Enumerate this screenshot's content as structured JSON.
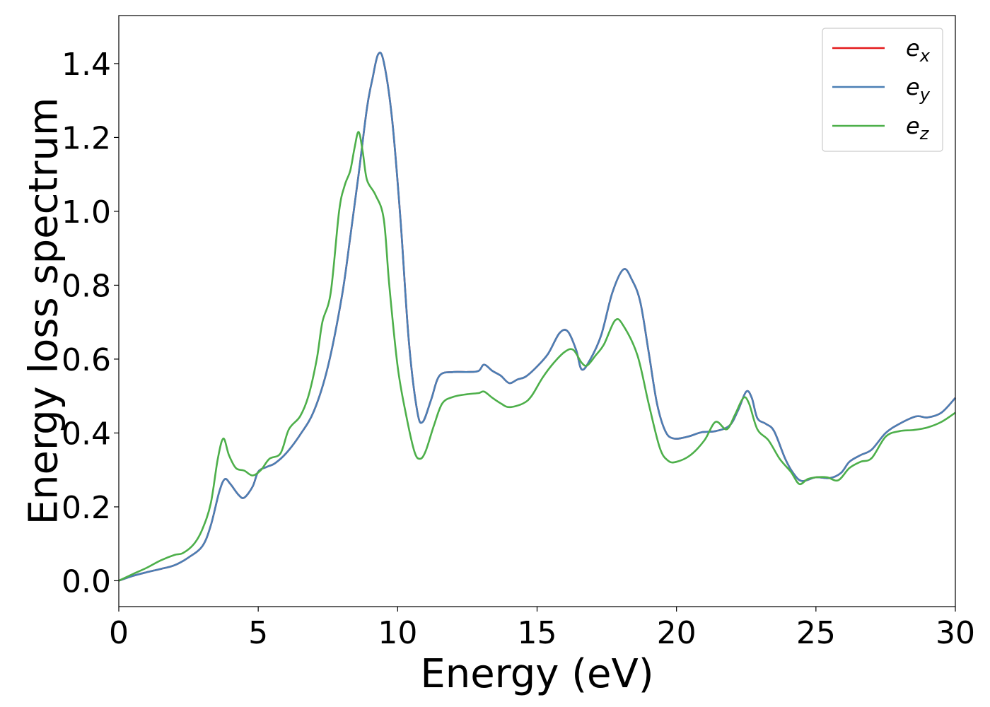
{
  "chart_data": {
    "type": "line",
    "title": "",
    "xlabel": "Energy (eV)",
    "ylabel": "Energy loss spectrum",
    "xlim": [
      0,
      30
    ],
    "ylim": [
      -0.07,
      1.53
    ],
    "xticks": [
      0,
      5,
      10,
      15,
      20,
      25,
      30
    ],
    "xtick_labels": [
      "0",
      "5",
      "10",
      "15",
      "20",
      "25",
      "30"
    ],
    "yticks": [
      0.0,
      0.2,
      0.4,
      0.6,
      0.8,
      1.0,
      1.2,
      1.4
    ],
    "ytick_labels": [
      "0.0",
      "0.2",
      "0.4",
      "0.6",
      "0.8",
      "1.0",
      "1.2",
      "1.4"
    ],
    "grid": false,
    "legend_position": "top-right",
    "series": [
      {
        "name": "e_x",
        "legend_base": "e",
        "legend_sub": "x",
        "color": "#e41a1c",
        "points": [
          [
            0,
            0.0
          ],
          [
            0.5,
            0.013
          ],
          [
            1,
            0.023
          ],
          [
            1.5,
            0.032
          ],
          [
            2,
            0.042
          ],
          [
            2.5,
            0.063
          ],
          [
            3,
            0.094
          ],
          [
            3.3,
            0.15
          ],
          [
            3.6,
            0.24
          ],
          [
            3.8,
            0.275
          ],
          [
            4,
            0.262
          ],
          [
            4.3,
            0.232
          ],
          [
            4.5,
            0.225
          ],
          [
            4.8,
            0.255
          ],
          [
            5,
            0.295
          ],
          [
            5.3,
            0.308
          ],
          [
            5.6,
            0.318
          ],
          [
            6,
            0.345
          ],
          [
            6.5,
            0.395
          ],
          [
            7,
            0.46
          ],
          [
            7.5,
            0.58
          ],
          [
            8,
            0.77
          ],
          [
            8.3,
            0.93
          ],
          [
            8.6,
            1.1
          ],
          [
            8.9,
            1.28
          ],
          [
            9.1,
            1.36
          ],
          [
            9.3,
            1.425
          ],
          [
            9.5,
            1.405
          ],
          [
            9.8,
            1.25
          ],
          [
            10.1,
            0.98
          ],
          [
            10.4,
            0.65
          ],
          [
            10.7,
            0.46
          ],
          [
            10.9,
            0.43
          ],
          [
            11.2,
            0.49
          ],
          [
            11.5,
            0.555
          ],
          [
            12,
            0.565
          ],
          [
            12.5,
            0.565
          ],
          [
            12.9,
            0.568
          ],
          [
            13.1,
            0.585
          ],
          [
            13.4,
            0.568
          ],
          [
            13.7,
            0.555
          ],
          [
            14,
            0.535
          ],
          [
            14.3,
            0.545
          ],
          [
            14.6,
            0.553
          ],
          [
            15,
            0.58
          ],
          [
            15.4,
            0.615
          ],
          [
            15.8,
            0.67
          ],
          [
            16.1,
            0.675
          ],
          [
            16.4,
            0.625
          ],
          [
            16.6,
            0.572
          ],
          [
            16.9,
            0.598
          ],
          [
            17.3,
            0.665
          ],
          [
            17.7,
            0.78
          ],
          [
            18.1,
            0.843
          ],
          [
            18.4,
            0.815
          ],
          [
            18.7,
            0.755
          ],
          [
            19,
            0.62
          ],
          [
            19.3,
            0.48
          ],
          [
            19.6,
            0.405
          ],
          [
            19.9,
            0.385
          ],
          [
            20.4,
            0.39
          ],
          [
            20.9,
            0.402
          ],
          [
            21.4,
            0.405
          ],
          [
            21.9,
            0.42
          ],
          [
            22.2,
            0.46
          ],
          [
            22.5,
            0.512
          ],
          [
            22.7,
            0.495
          ],
          [
            22.9,
            0.44
          ],
          [
            23.2,
            0.425
          ],
          [
            23.5,
            0.405
          ],
          [
            23.9,
            0.33
          ],
          [
            24.2,
            0.29
          ],
          [
            24.5,
            0.27
          ],
          [
            25,
            0.28
          ],
          [
            25.5,
            0.278
          ],
          [
            25.9,
            0.292
          ],
          [
            26.2,
            0.322
          ],
          [
            26.6,
            0.34
          ],
          [
            27,
            0.355
          ],
          [
            27.5,
            0.4
          ],
          [
            28,
            0.425
          ],
          [
            28.6,
            0.445
          ],
          [
            29,
            0.442
          ],
          [
            29.5,
            0.455
          ],
          [
            30,
            0.495
          ]
        ]
      },
      {
        "name": "e_y",
        "legend_base": "e",
        "legend_sub": "y",
        "color": "#4a7fb5",
        "points": [
          [
            0,
            0.0
          ],
          [
            0.5,
            0.013
          ],
          [
            1,
            0.023
          ],
          [
            1.5,
            0.032
          ],
          [
            2,
            0.042
          ],
          [
            2.5,
            0.063
          ],
          [
            3,
            0.094
          ],
          [
            3.3,
            0.15
          ],
          [
            3.6,
            0.24
          ],
          [
            3.8,
            0.275
          ],
          [
            4,
            0.262
          ],
          [
            4.3,
            0.232
          ],
          [
            4.5,
            0.225
          ],
          [
            4.8,
            0.255
          ],
          [
            5,
            0.295
          ],
          [
            5.3,
            0.308
          ],
          [
            5.6,
            0.318
          ],
          [
            6,
            0.345
          ],
          [
            6.5,
            0.395
          ],
          [
            7,
            0.46
          ],
          [
            7.5,
            0.58
          ],
          [
            8,
            0.77
          ],
          [
            8.3,
            0.93
          ],
          [
            8.6,
            1.1
          ],
          [
            8.9,
            1.28
          ],
          [
            9.1,
            1.36
          ],
          [
            9.3,
            1.425
          ],
          [
            9.5,
            1.405
          ],
          [
            9.8,
            1.25
          ],
          [
            10.1,
            0.98
          ],
          [
            10.4,
            0.65
          ],
          [
            10.7,
            0.46
          ],
          [
            10.9,
            0.43
          ],
          [
            11.2,
            0.49
          ],
          [
            11.5,
            0.555
          ],
          [
            12,
            0.565
          ],
          [
            12.5,
            0.565
          ],
          [
            12.9,
            0.568
          ],
          [
            13.1,
            0.585
          ],
          [
            13.4,
            0.568
          ],
          [
            13.7,
            0.555
          ],
          [
            14,
            0.535
          ],
          [
            14.3,
            0.545
          ],
          [
            14.6,
            0.553
          ],
          [
            15,
            0.58
          ],
          [
            15.4,
            0.615
          ],
          [
            15.8,
            0.67
          ],
          [
            16.1,
            0.675
          ],
          [
            16.4,
            0.625
          ],
          [
            16.6,
            0.572
          ],
          [
            16.9,
            0.598
          ],
          [
            17.3,
            0.665
          ],
          [
            17.7,
            0.78
          ],
          [
            18.1,
            0.843
          ],
          [
            18.4,
            0.815
          ],
          [
            18.7,
            0.755
          ],
          [
            19,
            0.62
          ],
          [
            19.3,
            0.48
          ],
          [
            19.6,
            0.405
          ],
          [
            19.9,
            0.385
          ],
          [
            20.4,
            0.39
          ],
          [
            20.9,
            0.402
          ],
          [
            21.4,
            0.405
          ],
          [
            21.9,
            0.42
          ],
          [
            22.2,
            0.46
          ],
          [
            22.5,
            0.512
          ],
          [
            22.7,
            0.495
          ],
          [
            22.9,
            0.44
          ],
          [
            23.2,
            0.425
          ],
          [
            23.5,
            0.405
          ],
          [
            23.9,
            0.33
          ],
          [
            24.2,
            0.29
          ],
          [
            24.5,
            0.27
          ],
          [
            25,
            0.28
          ],
          [
            25.5,
            0.278
          ],
          [
            25.9,
            0.292
          ],
          [
            26.2,
            0.322
          ],
          [
            26.6,
            0.34
          ],
          [
            27,
            0.355
          ],
          [
            27.5,
            0.4
          ],
          [
            28,
            0.425
          ],
          [
            28.6,
            0.445
          ],
          [
            29,
            0.442
          ],
          [
            29.5,
            0.455
          ],
          [
            30,
            0.495
          ]
        ]
      },
      {
        "name": "e_z",
        "legend_base": "e",
        "legend_sub": "z",
        "color": "#4daf4a",
        "points": [
          [
            0,
            0.0
          ],
          [
            0.5,
            0.018
          ],
          [
            1,
            0.035
          ],
          [
            1.5,
            0.055
          ],
          [
            2,
            0.07
          ],
          [
            2.3,
            0.075
          ],
          [
            2.7,
            0.1
          ],
          [
            3,
            0.14
          ],
          [
            3.3,
            0.21
          ],
          [
            3.55,
            0.33
          ],
          [
            3.75,
            0.385
          ],
          [
            3.95,
            0.34
          ],
          [
            4.2,
            0.305
          ],
          [
            4.5,
            0.298
          ],
          [
            4.8,
            0.285
          ],
          [
            5.1,
            0.3
          ],
          [
            5.4,
            0.33
          ],
          [
            5.8,
            0.345
          ],
          [
            6.1,
            0.41
          ],
          [
            6.5,
            0.445
          ],
          [
            6.8,
            0.5
          ],
          [
            7.1,
            0.6
          ],
          [
            7.3,
            0.7
          ],
          [
            7.6,
            0.78
          ],
          [
            7.9,
            1.0
          ],
          [
            8.1,
            1.07
          ],
          [
            8.3,
            1.11
          ],
          [
            8.45,
            1.17
          ],
          [
            8.6,
            1.215
          ],
          [
            8.75,
            1.16
          ],
          [
            8.9,
            1.085
          ],
          [
            9.2,
            1.045
          ],
          [
            9.5,
            0.98
          ],
          [
            9.7,
            0.8
          ],
          [
            10,
            0.58
          ],
          [
            10.3,
            0.45
          ],
          [
            10.6,
            0.35
          ],
          [
            10.8,
            0.33
          ],
          [
            11,
            0.35
          ],
          [
            11.3,
            0.42
          ],
          [
            11.6,
            0.48
          ],
          [
            12,
            0.498
          ],
          [
            12.5,
            0.505
          ],
          [
            12.9,
            0.508
          ],
          [
            13.1,
            0.512
          ],
          [
            13.4,
            0.495
          ],
          [
            13.7,
            0.48
          ],
          [
            14,
            0.47
          ],
          [
            14.5,
            0.48
          ],
          [
            14.8,
            0.5
          ],
          [
            15.2,
            0.55
          ],
          [
            15.6,
            0.59
          ],
          [
            16,
            0.62
          ],
          [
            16.3,
            0.625
          ],
          [
            16.6,
            0.59
          ],
          [
            16.8,
            0.583
          ],
          [
            17.1,
            0.61
          ],
          [
            17.4,
            0.64
          ],
          [
            17.8,
            0.705
          ],
          [
            18.1,
            0.69
          ],
          [
            18.6,
            0.61
          ],
          [
            19,
            0.48
          ],
          [
            19.4,
            0.36
          ],
          [
            19.7,
            0.325
          ],
          [
            20,
            0.322
          ],
          [
            20.5,
            0.34
          ],
          [
            21,
            0.38
          ],
          [
            21.4,
            0.43
          ],
          [
            21.8,
            0.41
          ],
          [
            22.1,
            0.45
          ],
          [
            22.4,
            0.495
          ],
          [
            22.6,
            0.48
          ],
          [
            22.9,
            0.41
          ],
          [
            23.3,
            0.38
          ],
          [
            23.7,
            0.33
          ],
          [
            24.1,
            0.295
          ],
          [
            24.4,
            0.262
          ],
          [
            24.7,
            0.275
          ],
          [
            25,
            0.28
          ],
          [
            25.4,
            0.28
          ],
          [
            25.8,
            0.272
          ],
          [
            26.2,
            0.305
          ],
          [
            26.6,
            0.322
          ],
          [
            27,
            0.332
          ],
          [
            27.5,
            0.39
          ],
          [
            28,
            0.405
          ],
          [
            28.5,
            0.408
          ],
          [
            29,
            0.415
          ],
          [
            29.5,
            0.43
          ],
          [
            30,
            0.455
          ]
        ]
      }
    ]
  }
}
